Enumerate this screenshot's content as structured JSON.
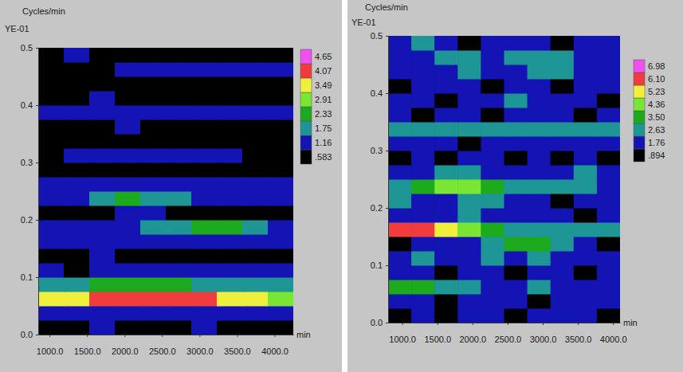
{
  "chart_data": [
    {
      "type": "heatmap",
      "ylabel": "Cycles/min",
      "yunit": "YE-01",
      "xlabel": "min",
      "xlim": [
        850,
        4250
      ],
      "ylim": [
        0,
        0.5
      ],
      "xticks": [
        {
          "value": 1000,
          "label": "1000.0"
        },
        {
          "value": 1500,
          "label": "1500.0"
        },
        {
          "value": 2000,
          "label": "2000.0"
        },
        {
          "value": 2500,
          "label": "2500.0"
        },
        {
          "value": 3000,
          "label": "3000.0"
        },
        {
          "value": 3500,
          "label": "3500.0"
        },
        {
          "value": 4000,
          "label": "4000.0"
        }
      ],
      "yticks": [
        {
          "value": 0,
          "label": "0.0"
        },
        0.1,
        0.2,
        0.3,
        0.4,
        0.5
      ],
      "x_edges": [
        850,
        1190,
        1530,
        1870,
        2210,
        2550,
        2890,
        3230,
        3570,
        3910,
        4250
      ],
      "y_edges": [
        0,
        0.025,
        0.05,
        0.075,
        0.1,
        0.125,
        0.15,
        0.175,
        0.2,
        0.225,
        0.25,
        0.275,
        0.3,
        0.325,
        0.35,
        0.375,
        0.4,
        0.425,
        0.45,
        0.475,
        0.5
      ],
      "cells": [
        [
          0.8,
          0.7,
          1.2,
          0.9,
          0.7,
          0.8,
          1.3,
          0.9,
          0.7,
          0.8
        ],
        [
          1.3,
          1.2,
          1.3,
          1.4,
          1.3,
          1.2,
          1.3,
          1.4,
          1.3,
          1.2
        ],
        [
          3.6,
          3.8,
          4.2,
          4.3,
          4.4,
          4.3,
          4.2,
          3.9,
          3.6,
          3.0
        ],
        [
          2.0,
          2.2,
          2.4,
          2.4,
          2.5,
          2.4,
          2.3,
          2.2,
          2.0,
          1.8
        ],
        [
          1.3,
          0.9,
          1.3,
          1.2,
          1.3,
          1.4,
          1.2,
          1.3,
          1.2,
          1.3
        ],
        [
          0.8,
          0.7,
          1.2,
          0.8,
          0.6,
          0.9,
          0.7,
          0.8,
          0.9,
          0.7
        ],
        [
          1.3,
          1.4,
          1.3,
          1.5,
          1.4,
          1.3,
          1.5,
          1.6,
          1.4,
          1.3
        ],
        [
          1.4,
          1.5,
          1.6,
          1.7,
          1.9,
          2.1,
          2.5,
          2.4,
          1.8,
          1.5
        ],
        [
          0.8,
          0.9,
          1.0,
          1.2,
          1.3,
          0.9,
          0.8,
          0.9,
          0.8,
          0.7
        ],
        [
          1.4,
          1.6,
          2.1,
          2.5,
          2.3,
          1.9,
          1.6,
          1.5,
          1.4,
          1.3
        ],
        [
          1.3,
          1.2,
          1.3,
          1.2,
          1.3,
          1.2,
          1.3,
          1.3,
          1.2,
          1.3
        ],
        [
          0.7,
          0.8,
          0.6,
          0.7,
          0.9,
          0.8,
          0.7,
          0.6,
          0.8,
          0.7
        ],
        [
          0.9,
          1.3,
          1.4,
          1.3,
          1.2,
          1.3,
          1.4,
          1.2,
          0.9,
          0.8
        ],
        [
          0.6,
          0.8,
          0.7,
          0.9,
          0.6,
          0.7,
          0.8,
          0.9,
          0.7,
          0.6
        ],
        [
          0.8,
          0.7,
          0.9,
          1.2,
          0.8,
          0.7,
          0.6,
          0.8,
          0.7,
          0.9
        ],
        [
          1.3,
          1.4,
          1.5,
          1.4,
          1.3,
          1.3,
          1.4,
          1.3,
          1.2,
          1.3
        ],
        [
          0.9,
          0.8,
          1.2,
          0.7,
          0.8,
          0.9,
          0.7,
          0.8,
          0.9,
          0.8
        ],
        [
          0.7,
          0.6,
          0.8,
          0.7,
          0.9,
          0.7,
          0.8,
          0.6,
          0.7,
          0.8
        ],
        [
          0.6,
          0.7,
          0.8,
          1.3,
          1.4,
          1.5,
          1.4,
          1.5,
          1.4,
          1.3
        ],
        [
          0.7,
          1.2,
          0.8,
          0.6,
          0.7,
          0.8,
          0.7,
          0.9,
          0.8,
          0.7
        ]
      ],
      "colorbar": {
        "ticks": [
          {
            "value": 0.583,
            "label": ".583"
          },
          1.16,
          1.75,
          2.33,
          2.91,
          3.49,
          4.07,
          4.65
        ],
        "colors": [
          "#000000",
          "#1414b4",
          "#1e9696",
          "#1eaa1e",
          "#78e632",
          "#f0f03c",
          "#f03c3c",
          "#f050f0"
        ]
      }
    },
    {
      "type": "heatmap",
      "ylabel": "Cycles/min",
      "yunit": "YE-01",
      "xlabel": "min",
      "xlim": [
        800,
        4100
      ],
      "ylim": [
        0,
        0.5
      ],
      "xticks": [
        {
          "value": 1000,
          "label": "1000.0"
        },
        {
          "value": 1500,
          "label": "1500.0"
        },
        {
          "value": 2000,
          "label": "2000.0"
        },
        {
          "value": 2500,
          "label": "2500.0"
        },
        {
          "value": 3000,
          "label": "3000.0"
        },
        {
          "value": 3500,
          "label": "3500.0"
        },
        {
          "value": 4000,
          "label": "4000.0"
        }
      ],
      "yticks": [
        {
          "value": 0,
          "label": "0.0"
        },
        0.1,
        0.2,
        0.3,
        0.4,
        0.5
      ],
      "x_edges": [
        800,
        1130,
        1460,
        1790,
        2120,
        2450,
        2780,
        3110,
        3440,
        3770,
        4100
      ],
      "y_edges": [
        0,
        0.025,
        0.05,
        0.075,
        0.1,
        0.125,
        0.15,
        0.175,
        0.2,
        0.225,
        0.25,
        0.275,
        0.3,
        0.325,
        0.35,
        0.375,
        0.4,
        0.425,
        0.45,
        0.475,
        0.5
      ],
      "cells": [
        [
          1.0,
          1.9,
          0.9,
          1.8,
          1.9,
          1.0,
          1.9,
          1.8,
          1.9,
          1.0
        ],
        [
          2.0,
          1.9,
          1.1,
          1.9,
          2.0,
          1.9,
          1.0,
          1.9,
          2.0,
          1.9
        ],
        [
          3.8,
          3.6,
          2.8,
          2.7,
          2.0,
          1.9,
          2.7,
          2.0,
          1.9,
          2.0
        ],
        [
          2.0,
          1.9,
          1.0,
          1.9,
          1.8,
          1.1,
          1.9,
          2.0,
          1.0,
          1.9
        ],
        [
          1.9,
          2.7,
          2.0,
          1.9,
          2.8,
          2.0,
          2.9,
          1.9,
          2.0,
          1.9
        ],
        [
          1.0,
          2.0,
          1.9,
          2.0,
          2.8,
          3.6,
          3.7,
          2.8,
          1.9,
          1.0
        ],
        [
          6.5,
          6.3,
          5.5,
          4.6,
          3.8,
          3.0,
          2.9,
          2.8,
          2.7,
          2.7
        ],
        [
          1.9,
          2.0,
          1.9,
          2.7,
          2.0,
          1.9,
          2.0,
          1.9,
          1.0,
          1.9
        ],
        [
          2.8,
          1.9,
          2.0,
          2.7,
          2.8,
          2.0,
          1.9,
          1.0,
          1.9,
          2.0
        ],
        [
          2.8,
          3.6,
          4.5,
          4.7,
          3.8,
          2.9,
          3.0,
          2.8,
          2.7,
          2.0
        ],
        [
          1.9,
          2.0,
          2.8,
          2.7,
          2.0,
          1.9,
          2.0,
          1.9,
          2.8,
          2.0
        ],
        [
          1.0,
          1.9,
          1.0,
          1.9,
          2.0,
          1.0,
          1.9,
          1.0,
          1.9,
          1.0
        ],
        [
          2.0,
          1.9,
          2.0,
          1.0,
          1.9,
          2.0,
          1.9,
          2.0,
          1.9,
          1.8
        ],
        [
          2.7,
          2.8,
          2.9,
          2.8,
          2.7,
          2.8,
          2.9,
          2.7,
          2.8,
          2.7
        ],
        [
          1.9,
          1.0,
          1.9,
          2.0,
          1.0,
          1.9,
          2.0,
          1.9,
          1.0,
          1.9
        ],
        [
          2.0,
          1.9,
          1.0,
          1.9,
          2.0,
          2.7,
          1.9,
          2.0,
          1.9,
          1.0
        ],
        [
          1.0,
          1.9,
          2.0,
          1.9,
          1.0,
          1.9,
          2.0,
          1.0,
          1.9,
          2.0
        ],
        [
          1.9,
          2.0,
          1.9,
          2.7,
          2.0,
          1.9,
          2.8,
          2.7,
          1.9,
          1.9
        ],
        [
          2.0,
          1.9,
          2.7,
          2.8,
          1.9,
          2.8,
          2.9,
          2.7,
          2.0,
          1.9
        ],
        [
          1.9,
          2.8,
          1.9,
          1.0,
          1.9,
          2.0,
          1.9,
          1.0,
          1.9,
          2.0
        ]
      ],
      "colorbar": {
        "ticks": [
          {
            "value": 0.894,
            "label": ".894"
          },
          1.76,
          2.63,
          {
            "value": 3.5,
            "label": "3.50"
          },
          4.36,
          5.23,
          {
            "value": 6.1,
            "label": "6.10"
          },
          6.98
        ],
        "colors": [
          "#000000",
          "#1414b4",
          "#1e9696",
          "#1eaa1e",
          "#78e632",
          "#f0f03c",
          "#f03c3c",
          "#f050f0"
        ]
      }
    }
  ]
}
